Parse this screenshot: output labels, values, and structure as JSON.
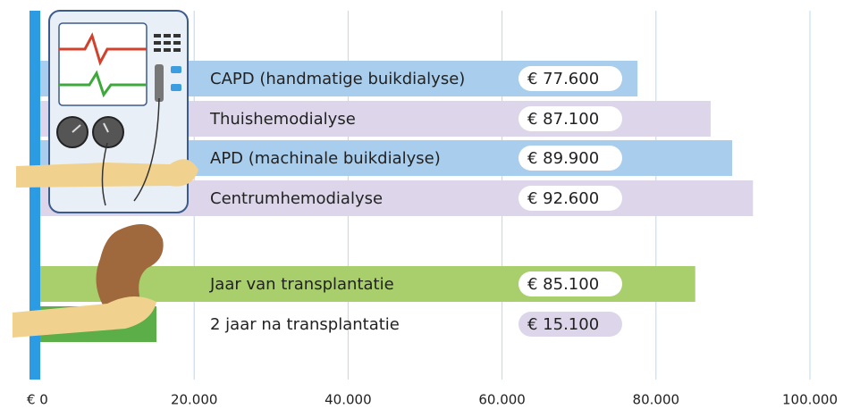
{
  "chart_data": {
    "type": "bar",
    "orientation": "horizontal",
    "categories": [
      "CAPD (handmatige buikdialyse)",
      "Thuishemodialyse",
      "APD (machinale buikdialyse)",
      "Centrumhemodialyse",
      "Jaar van transplantatie",
      "2 jaar na transplantatie"
    ],
    "values": [
      77600,
      87100,
      89900,
      92600,
      85100,
      15100
    ],
    "value_labels": [
      "€ 77.600",
      "€ 87.100",
      "€ 89.900",
      "€ 92.600",
      "€ 85.100",
      "€ 15.100"
    ],
    "colors": [
      "#a9cdec",
      "#ddd6ea",
      "#a9cdec",
      "#ddd6ea",
      "#a8cf6c",
      "#5cae48"
    ],
    "value_label_colors": [
      "#ffffff",
      "#ffffff",
      "#ffffff",
      "#ffffff",
      "#ffffff",
      "#ddd6ea"
    ],
    "xlim": [
      0,
      100000
    ],
    "xticks": [
      {
        "value": 0,
        "label": "€ 0"
      },
      {
        "value": 20000,
        "label": "20.000"
      },
      {
        "value": 40000,
        "label": "40.000"
      },
      {
        "value": 60000,
        "label": "60.000"
      },
      {
        "value": 80000,
        "label": "80.000"
      },
      {
        "value": 100000,
        "label": "100.000"
      }
    ],
    "grid": true
  }
}
